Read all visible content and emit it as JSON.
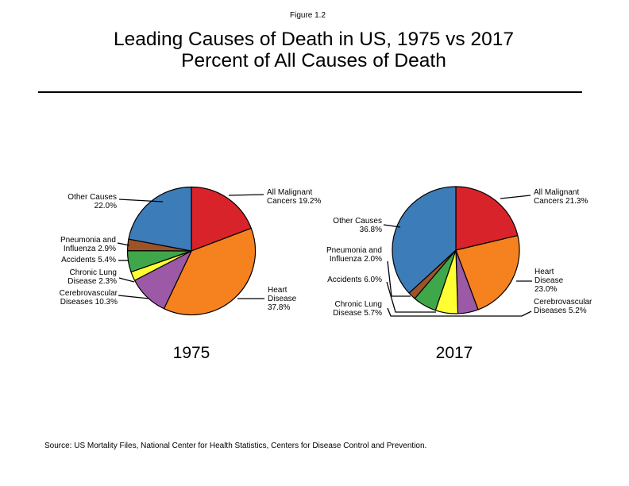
{
  "figure": {
    "label": "Figure 1.2",
    "title_line1": "Leading Causes of Death in US, 1975 vs 2017",
    "title_line2": "Percent of All Causes of Death",
    "source": "Source: US Mortality Files, National Center for Health Statistics, Centers for Disease Control and Prevention."
  },
  "chart_data": [
    {
      "type": "pie",
      "year": "1975",
      "start_angle_deg": 0,
      "direction": "clockwise",
      "slices": [
        {
          "name": "All Malignant Cancers",
          "value": 19.2,
          "color": "#d9232a",
          "label_lines": [
            "All Malignant",
            "Cancers 19.2%"
          ]
        },
        {
          "name": "Heart Disease",
          "value": 37.8,
          "color": "#f5821f",
          "label_lines": [
            "Heart",
            "Disease",
            "37.8%"
          ]
        },
        {
          "name": "Cerebrovascular Diseases",
          "value": 10.3,
          "color": "#9c59a6",
          "label_lines": [
            "Cerebrovascular",
            "Diseases 10.3%"
          ]
        },
        {
          "name": "Chronic Lung Disease",
          "value": 2.3,
          "color": "#ffff33",
          "label_lines": [
            "Chronic Lung",
            "Disease 2.3%"
          ]
        },
        {
          "name": "Accidents",
          "value": 5.4,
          "color": "#3fa74a",
          "label_lines": [
            "Accidents 5.4%"
          ]
        },
        {
          "name": "Pneumonia and Influenza",
          "value": 2.9,
          "color": "#9d5328",
          "label_lines": [
            "Pneumonia and",
            "Influenza 2.9%"
          ]
        },
        {
          "name": "Other Causes",
          "value": 22.0,
          "color": "#3c7cb8",
          "label_lines": [
            "Other Causes",
            "22.0%"
          ]
        }
      ]
    },
    {
      "type": "pie",
      "year": "2017",
      "start_angle_deg": 0,
      "direction": "clockwise",
      "slices": [
        {
          "name": "All Malignant Cancers",
          "value": 21.3,
          "color": "#d9232a",
          "label_lines": [
            "All Malignant",
            "Cancers 21.3%"
          ]
        },
        {
          "name": "Heart Disease",
          "value": 23.0,
          "color": "#f5821f",
          "label_lines": [
            "Heart",
            "Disease",
            "23.0%"
          ]
        },
        {
          "name": "Cerebrovascular Diseases",
          "value": 5.2,
          "color": "#9c59a6",
          "label_lines": [
            "Cerebrovascular",
            "Diseases 5.2%"
          ]
        },
        {
          "name": "Chronic Lung Disease",
          "value": 5.7,
          "color": "#ffff33",
          "label_lines": [
            "Chronic Lung",
            "Disease 5.7%"
          ]
        },
        {
          "name": "Accidents",
          "value": 6.0,
          "color": "#3fa74a",
          "label_lines": [
            "Accidents 6.0%"
          ]
        },
        {
          "name": "Pneumonia and Influenza",
          "value": 2.0,
          "color": "#9d5328",
          "label_lines": [
            "Pneumonia and",
            "Influenza 2.0%"
          ]
        },
        {
          "name": "Other Causes",
          "value": 36.8,
          "color": "#3c7cb8",
          "label_lines": [
            "Other Causes",
            "36.8%"
          ]
        }
      ]
    }
  ]
}
